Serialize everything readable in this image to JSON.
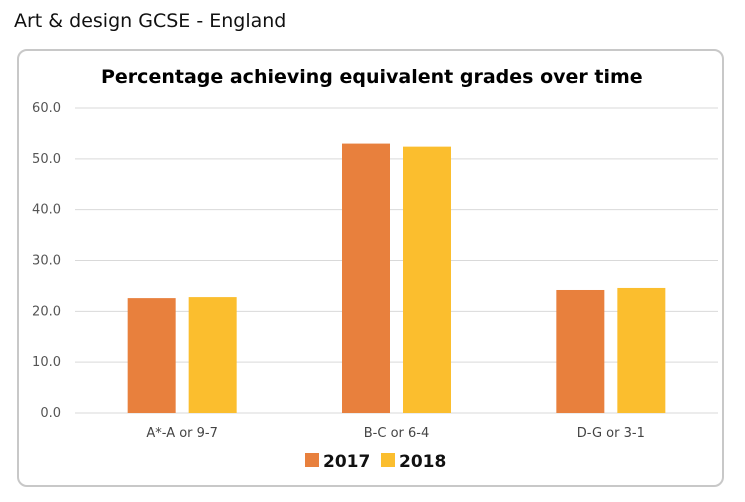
{
  "page": {
    "title": "Art & design GCSE - England"
  },
  "colors": {
    "series_2017": "#E8803D",
    "series_2018": "#FBBE2E",
    "grid": "#d9d9d9",
    "panel_border": "#c8c8c8"
  },
  "chart_data": {
    "type": "bar",
    "title": "Percentage achieving equivalent grades over time",
    "xlabel": "",
    "ylabel": "",
    "categories": [
      "A*-A or 9-7",
      "B-C or 6-4",
      "D-G or 3-1"
    ],
    "series": [
      {
        "name": "2017",
        "values": [
          22.6,
          53.0,
          24.2
        ]
      },
      {
        "name": "2018",
        "values": [
          22.8,
          52.4,
          24.6
        ]
      }
    ],
    "ylim": [
      0,
      60
    ],
    "yticks": [
      "0.0",
      "10.0",
      "20.0",
      "30.0",
      "40.0",
      "50.0",
      "60.0"
    ],
    "grid": true,
    "legend_position": "bottom"
  }
}
